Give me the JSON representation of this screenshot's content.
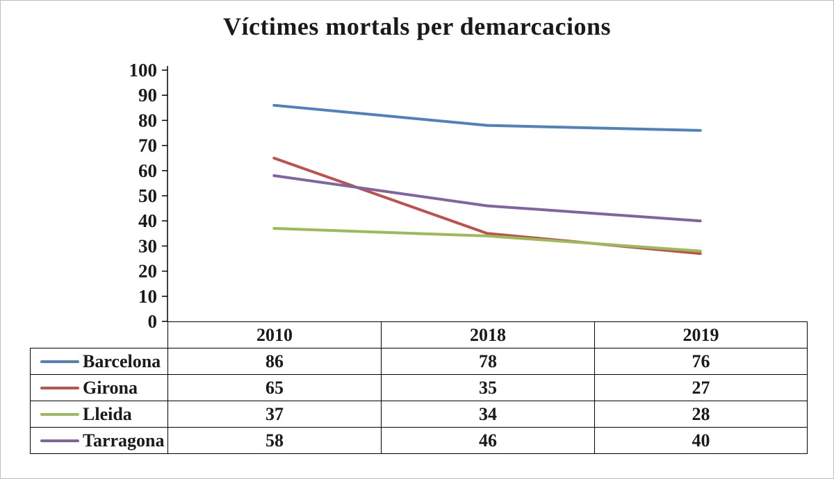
{
  "chart_data": {
    "type": "line",
    "title": "Víctimes mortals per demarcacions",
    "categories": [
      "2010",
      "2018",
      "2019"
    ],
    "series": [
      {
        "name": "Barcelona",
        "color": "#4f81bd",
        "values": [
          86,
          78,
          76
        ]
      },
      {
        "name": "Girona",
        "color": "#c0504d",
        "values": [
          65,
          35,
          27
        ]
      },
      {
        "name": "Lleida",
        "color": "#9bbb59",
        "values": [
          37,
          34,
          28
        ]
      },
      {
        "name": "Tarragona",
        "color": "#8064a2",
        "values": [
          58,
          46,
          40
        ]
      }
    ],
    "xlabel": "",
    "ylabel": "",
    "ylim": [
      0,
      100
    ],
    "ytick_step": 10,
    "grid": false,
    "legend_position": "table-left",
    "axis_color": "#000000",
    "line_width": 4
  }
}
